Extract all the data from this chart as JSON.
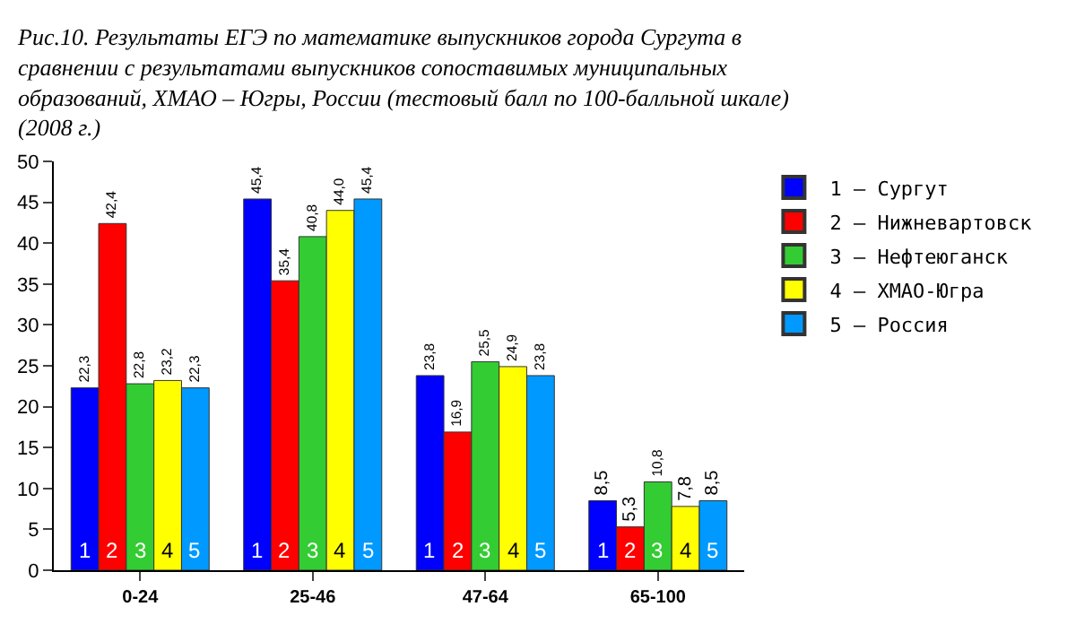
{
  "chart_data": {
    "type": "bar",
    "title": "Рис.10. Результаты ЕГЭ по математике выпускников города Сургута в сравнении с результатами выпускников сопоставимых муниципальных образований, ХМАО – Югры, России (тестовый балл по 100-балльной шкале) (2008 г.)",
    "categories": [
      "0-24",
      "25-46",
      "47-64",
      "65-100"
    ],
    "series": [
      {
        "name": "1 – Сургут",
        "color": "#0000ff",
        "values": [
          22.3,
          45.4,
          23.8,
          8.5
        ],
        "value_labels": [
          "22,3",
          "45,4",
          "23,8",
          "8,5"
        ]
      },
      {
        "name": "2 – Нижневартовск",
        "color": "#ff0000",
        "values": [
          42.4,
          35.4,
          16.9,
          5.3
        ],
        "value_labels": [
          "42,4",
          "35,4",
          "16,9",
          "5,3"
        ]
      },
      {
        "name": "3 – Нефтеюганск",
        "color": "#33cc33",
        "values": [
          22.8,
          40.8,
          25.5,
          10.8
        ],
        "value_labels": [
          "22,8",
          "40,8",
          "25,5",
          "10,8"
        ]
      },
      {
        "name": "4 – ХМАО-Югра",
        "color": "#ffff00",
        "values": [
          23.2,
          44.0,
          24.9,
          7.8
        ],
        "value_labels": [
          "23,2",
          "44,0",
          "24,9",
          "7,8"
        ]
      },
      {
        "name": "5 – Россия",
        "color": "#0099ff",
        "values": [
          22.3,
          45.4,
          23.8,
          8.5
        ],
        "value_labels": [
          "22,3",
          "45,4",
          "23,8",
          "8,5"
        ]
      }
    ],
    "ylim": [
      0,
      50
    ],
    "yticks": [
      0,
      5,
      10,
      15,
      20,
      25,
      30,
      35,
      40,
      45,
      50
    ],
    "grid": false,
    "legend": "right",
    "annotations": [
      {
        "text": "1",
        "x": "0-24",
        "y": 0
      },
      {
        "text": "2",
        "x": "0-24",
        "y": 0
      },
      {
        "text": "3",
        "x": "0-24",
        "y": 0
      },
      {
        "text": "4",
        "x": "0-24",
        "y": 0
      },
      {
        "text": "5",
        "x": "0-24",
        "y": 0
      },
      {
        "text": "1",
        "x": "25-46",
        "y": 0
      },
      {
        "text": "2",
        "x": "25-46",
        "y": 0
      },
      {
        "text": "3",
        "x": "25-46",
        "y": 0
      },
      {
        "text": "4",
        "x": "25-46",
        "y": 0
      },
      {
        "text": "5",
        "x": "25-46",
        "y": 0
      },
      {
        "text": "1",
        "x": "47-64",
        "y": 0
      },
      {
        "text": "2",
        "x": "47-64",
        "y": 0
      },
      {
        "text": "3",
        "x": "47-64",
        "y": 0
      },
      {
        "text": "4",
        "x": "47-64",
        "y": 0
      },
      {
        "text": "5",
        "x": "47-64",
        "y": 0
      },
      {
        "text": "1",
        "x": "65-100",
        "y": 0
      },
      {
        "text": "2",
        "x": "65-100",
        "y": 0
      },
      {
        "text": "3",
        "x": "65-100",
        "y": 0
      },
      {
        "text": "4",
        "x": "65-100",
        "y": 0
      },
      {
        "text": "5",
        "x": "65-100",
        "y": 0
      }
    ]
  }
}
